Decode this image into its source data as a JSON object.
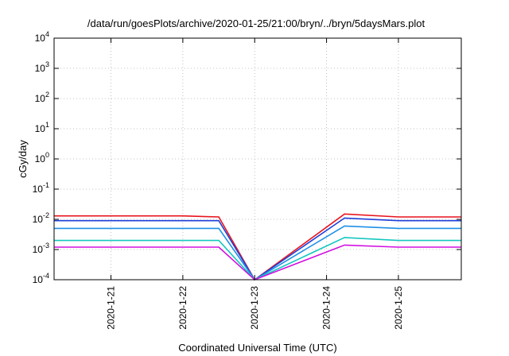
{
  "chart_data": {
    "type": "line",
    "title": "/data/run/goesPlots/archive/2020-01-25/21:00/bryn/../bryn/5daysMars.plot",
    "xlabel": "Coordinated Universal Time (UTC)",
    "ylabel": "cGy/day",
    "yscale": "log",
    "ylim": [
      0.0001,
      10000
    ],
    "xlim": [
      "2020-01-20 05:00",
      "2020-01-25 21:00"
    ],
    "grid": true,
    "legend": "none",
    "x_ticks": [
      {
        "label": "2020-1-21",
        "value": "2020-01-21 00:00"
      },
      {
        "label": "2020-1-22",
        "value": "2020-01-22 00:00"
      },
      {
        "label": "2020-1-23",
        "value": "2020-01-23 00:00"
      },
      {
        "label": "2020-1-24",
        "value": "2020-01-24 00:00"
      },
      {
        "label": "2020-1-25",
        "value": "2020-01-25 00:00"
      }
    ],
    "y_ticks": [
      {
        "value": 0.0001,
        "base": "10",
        "exp": "-4"
      },
      {
        "value": 0.001,
        "base": "10",
        "exp": "-3"
      },
      {
        "value": 0.01,
        "base": "10",
        "exp": "-2"
      },
      {
        "value": 0.1,
        "base": "10",
        "exp": "-1"
      },
      {
        "value": 1,
        "base": "10",
        "exp": "0"
      },
      {
        "value": 10,
        "base": "10",
        "exp": "1"
      },
      {
        "value": 100,
        "base": "10",
        "exp": "2"
      },
      {
        "value": 1000,
        "base": "10",
        "exp": "3"
      },
      {
        "value": 10000,
        "base": "10",
        "exp": "4"
      }
    ],
    "series": [
      {
        "color": "#e8141e",
        "values_at_peaks": [
          0.013,
          0.013,
          0.013,
          0.013,
          0.012,
          0.0001,
          0.015,
          0.012,
          0.012
        ],
        "x": [
          "2020-01-20 05:00",
          "2020-01-21 00:00",
          "2020-01-21 12:00",
          "2020-01-22 00:00",
          "2020-01-22 12:00",
          "2020-01-23 00:00",
          "2020-01-24 06:00",
          "2020-01-25 00:00",
          "2020-01-25 21:00"
        ]
      },
      {
        "color": "#1f3fd8",
        "values_at_peaks": [
          0.009,
          0.009,
          0.009,
          0.009,
          0.009,
          0.0001,
          0.011,
          0.009,
          0.009
        ],
        "x": [
          "2020-01-20 05:00",
          "2020-01-21 00:00",
          "2020-01-21 12:00",
          "2020-01-22 00:00",
          "2020-01-22 12:00",
          "2020-01-23 00:00",
          "2020-01-24 06:00",
          "2020-01-25 00:00",
          "2020-01-25 21:00"
        ]
      },
      {
        "color": "#1e90e6",
        "values_at_peaks": [
          0.005,
          0.005,
          0.005,
          0.005,
          0.005,
          0.0001,
          0.006,
          0.005,
          0.005
        ],
        "x": [
          "2020-01-20 05:00",
          "2020-01-21 00:00",
          "2020-01-21 12:00",
          "2020-01-22 00:00",
          "2020-01-22 12:00",
          "2020-01-23 00:00",
          "2020-01-24 06:00",
          "2020-01-25 00:00",
          "2020-01-25 21:00"
        ]
      },
      {
        "color": "#16c7c0",
        "values_at_peaks": [
          0.002,
          0.002,
          0.002,
          0.002,
          0.002,
          0.0001,
          0.0025,
          0.002,
          0.002
        ],
        "x": [
          "2020-01-20 05:00",
          "2020-01-21 00:00",
          "2020-01-21 12:00",
          "2020-01-22 00:00",
          "2020-01-22 12:00",
          "2020-01-23 00:00",
          "2020-01-24 06:00",
          "2020-01-25 00:00",
          "2020-01-25 21:00"
        ]
      },
      {
        "color": "#d010e0",
        "values_at_peaks": [
          0.0012,
          0.0012,
          0.0012,
          0.0012,
          0.0012,
          0.0001,
          0.0014,
          0.0012,
          0.0012
        ],
        "x": [
          "2020-01-20 05:00",
          "2020-01-21 00:00",
          "2020-01-21 12:00",
          "2020-01-22 00:00",
          "2020-01-22 12:00",
          "2020-01-23 00:00",
          "2020-01-24 06:00",
          "2020-01-25 00:00",
          "2020-01-25 21:00"
        ]
      }
    ]
  }
}
